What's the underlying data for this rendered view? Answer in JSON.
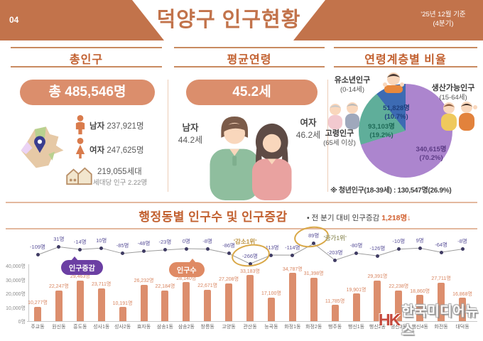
{
  "page": {
    "number": "04",
    "title": "덕양구 인구현황",
    "date_line1": "'25년 12월 기준",
    "date_line2": "(4분기)"
  },
  "colors": {
    "header": "#C2734B",
    "section_title": "#C2602F",
    "pill_bg": "#DB8E6C",
    "bar": "#DC8E6D",
    "line": "#9C9C9C",
    "dot": "#3F3B63",
    "change_label": "#5A5199",
    "legend_change_bg": "#6B3FA3",
    "legend_population_bg": "#DF8A64",
    "gold": "#D9A847"
  },
  "panels": {
    "total": {
      "title": "총인구",
      "total_pill": "총 485,546명",
      "male_label": "남자",
      "male_value": "237,921명",
      "female_label": "여자",
      "female_value": "247,625명",
      "households": "219,055세대",
      "per_household": "세대당 인구 2.22명"
    },
    "age": {
      "title": "평균연령",
      "pill": "45.2세",
      "male_label": "남자",
      "male_value": "44.2세",
      "female_label": "여자",
      "female_value": "46.2세"
    },
    "ratio": {
      "title": "연령계층별 비율",
      "footnote": "※ 청년인구(18-39세) : 130,547명(26.9%)"
    }
  },
  "bottom": {
    "title": "행정동별 인구수 및 인구증감",
    "subtitle_prefix": "• 전 분기 대비 인구증감",
    "subtitle_value": "1,218명↓",
    "legend_change": "인구증감",
    "legend_population": "인구수"
  },
  "watermark": {
    "logo": "HK",
    "text": "한국미디어뉴스"
  },
  "chart_data": [
    {
      "type": "pie",
      "title": "연령계층별 비율",
      "slices": [
        {
          "name": "유소년인구",
          "age_range": "(0-14세)",
          "value": 51828,
          "percent": 10.7,
          "value_label": "51,828명",
          "percent_label": "(10.7%)",
          "color": "#3D6BB3",
          "label_color": "#1E3F7D"
        },
        {
          "name": "생산가능인구",
          "age_range": "(15-64세)",
          "value": 340615,
          "percent": 70.2,
          "value_label": "340,615명",
          "percent_label": "(70.2%)",
          "color": "#AC85CE",
          "label_color": "#5C3B85"
        },
        {
          "name": "고령인구",
          "age_range": "(65세 이상)",
          "value": 93103,
          "percent": 19.2,
          "value_label": "93,103명",
          "percent_label": "(19.2%)",
          "color": "#5FAE9A",
          "label_color": "#1F6B58"
        }
      ],
      "draw_order": [
        1,
        2,
        0
      ],
      "start_angle_deg": 0,
      "clockwise": true,
      "footnote": "※ 청년인구(18-39세) : 130,547명(26.9%)"
    },
    {
      "type": "bar",
      "title": "행정동별 인구수 및 인구증감",
      "categories": [
        "주교동",
        "원신동",
        "흥도동",
        "성사1동",
        "성사2동",
        "효자동",
        "삼송1동",
        "삼송2동",
        "창릉동",
        "고양동",
        "관산동",
        "능곡동",
        "화정1동",
        "화정2동",
        "행주동",
        "행신1동",
        "행신2동",
        "행신3동",
        "행신4동",
        "화전동",
        "대덕동"
      ],
      "series": [
        {
          "name": "인구수",
          "type": "bar",
          "values": [
            10277,
            22247,
            29463,
            23711,
            10191,
            26232,
            22184,
            28140,
            22671,
            27208,
            33183,
            17100,
            34787,
            31398,
            11785,
            19901,
            29391,
            22238,
            18860,
            27711,
            16868
          ],
          "labels": [
            "10,277명",
            "22,247명",
            "29,463명",
            "23,711명",
            "10,191명",
            "26,232명",
            "22,184명",
            "28,140명",
            "22,671명",
            "27,208명",
            "33,183명",
            "17,100명",
            "34,787명",
            "31,398명",
            "11,785명",
            "19,901명",
            "29,391명",
            "22,238명",
            "18,860명",
            "27,711명",
            "16,868명"
          ]
        },
        {
          "name": "인구증감",
          "type": "line",
          "values": [
            -109,
            31,
            -14,
            10,
            -85,
            -48,
            -23,
            0,
            -8,
            -86,
            -266,
            -113,
            -114,
            89,
            -203,
            -80,
            -126,
            -10,
            9,
            -64,
            -8
          ],
          "labels": [
            "-109명",
            "31명",
            "-14명",
            "10명",
            "-85명",
            "-48명",
            "-23명",
            "0명",
            "-8명",
            "-86명",
            "-266명",
            "-113명",
            "-114명",
            "89명",
            "-203명",
            "-80명",
            "-126명",
            "-10명",
            "9명",
            "-64명",
            "-8명"
          ]
        }
      ],
      "y_ticks": {
        "values": [
          0,
          10000,
          20000,
          30000,
          40000
        ],
        "labels": [
          "0명",
          "10,000명",
          "20,000명",
          "30,000명",
          "40,000명"
        ]
      },
      "ylim": [
        0,
        40000
      ],
      "grid": false,
      "annotations": [
        {
          "index": 10,
          "text": "'감소1위'",
          "color": "#BD9443"
        },
        {
          "index": 13,
          "text": "'증가1위'",
          "color": "#A3A179"
        }
      ]
    }
  ]
}
